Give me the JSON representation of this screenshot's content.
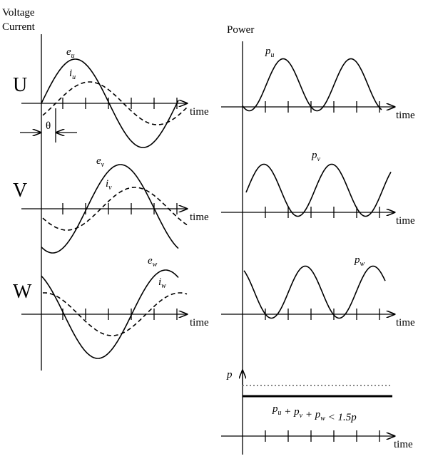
{
  "left_panel": {
    "axis_label_lines": [
      "Voltage",
      "Current"
    ],
    "phase_label": "θ",
    "rows": [
      {
        "label": "U",
        "voltage": {
          "symbol": "e",
          "subscript": "u"
        },
        "current": {
          "symbol": "i",
          "subscript": "u"
        },
        "time_label": "time"
      },
      {
        "label": "V",
        "voltage": {
          "symbol": "e",
          "subscript": "v"
        },
        "current": {
          "symbol": "i",
          "subscript": "v"
        },
        "time_label": "time"
      },
      {
        "label": "W",
        "voltage": {
          "symbol": "e",
          "subscript": "w"
        },
        "current": {
          "symbol": "i",
          "subscript": "w"
        },
        "time_label": "time"
      }
    ]
  },
  "right_panel": {
    "axis_label": "Power",
    "rows": [
      {
        "power": {
          "symbol": "p",
          "subscript": "u"
        },
        "time_label": "time"
      },
      {
        "power": {
          "symbol": "p",
          "subscript": "v"
        },
        "time_label": "time"
      },
      {
        "power": {
          "symbol": "p",
          "subscript": "w"
        },
        "time_label": "time"
      }
    ],
    "sum": {
      "axis_label": "p",
      "time_label": "time",
      "equation": [
        {
          "text": "p",
          "sub": "u"
        },
        {
          "text": " + p",
          "sub": "v"
        },
        {
          "text": " + p",
          "sub": "w"
        },
        {
          "text": " < 1.5p"
        }
      ]
    }
  }
}
